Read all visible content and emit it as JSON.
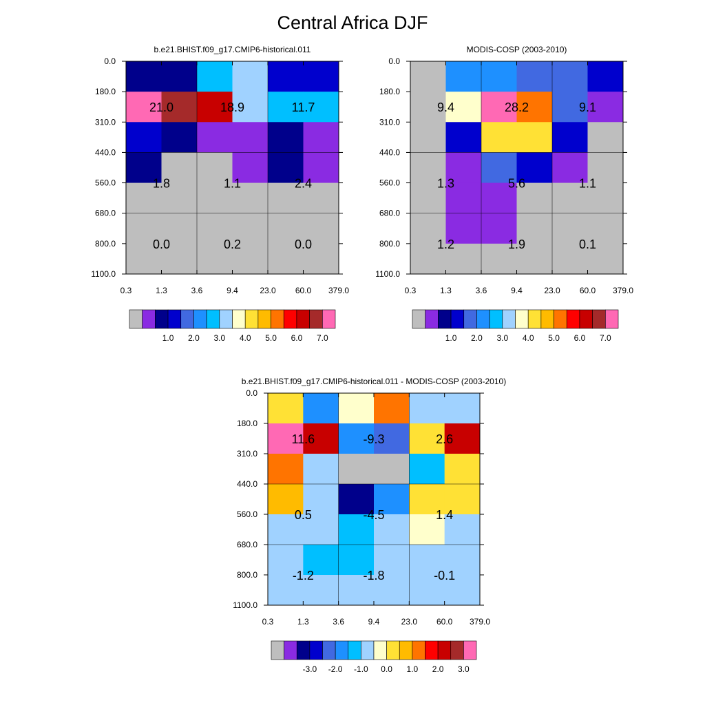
{
  "figure": {
    "title": "Central Africa DJF"
  },
  "colors": {
    "missing": "#bebebe",
    "abs_palette": [
      "#bebebe",
      "#8a2be2",
      "#00008b",
      "#0000cd",
      "#4169e1",
      "#1e90ff",
      "#00bfff",
      "#a0d2ff",
      "#ffffcc",
      "#ffe135",
      "#ffbb00",
      "#ff7400",
      "#ff0000",
      "#c80000",
      "#a52a2a",
      "#ff69b4"
    ],
    "diff_palette": [
      "#bebebe",
      "#8a2be2",
      "#00008b",
      "#0000cd",
      "#4169e1",
      "#1e90ff",
      "#00bfff",
      "#a0d2ff",
      "#ffffcc",
      "#ffe135",
      "#ffbb00",
      "#ff7400",
      "#ff0000",
      "#c80000",
      "#a52a2a",
      "#ff69b4"
    ]
  },
  "chart_data": [
    {
      "type": "heatmap",
      "title": "b.e21.BHIST.f09_g17.CMIP6-historical.011",
      "x_ticks": [
        "0.3",
        "1.3",
        "3.6",
        "9.4",
        "23.0",
        "60.0",
        "379.0"
      ],
      "y_ticks": [
        "0.0",
        "180.0",
        "310.0",
        "440.0",
        "560.0",
        "680.0",
        "800.0",
        "1100.0"
      ],
      "cell_colors": [
        [
          2,
          2,
          6,
          7,
          3,
          3
        ],
        [
          15,
          14,
          13,
          7,
          6,
          6
        ],
        [
          3,
          2,
          1,
          1,
          2,
          1
        ],
        [
          2,
          0,
          0,
          1,
          2,
          1
        ],
        [
          0,
          0,
          0,
          0,
          0,
          0
        ],
        [
          0,
          0,
          0,
          0,
          0,
          0
        ],
        [
          0,
          0,
          0,
          0,
          0,
          0
        ]
      ],
      "cell_labels": [
        {
          "row": 0,
          "col": 0,
          "text": "21.0"
        },
        {
          "row": 0,
          "col": 1,
          "text": "18.9"
        },
        {
          "row": 0,
          "col": 2,
          "text": "11.7"
        },
        {
          "row": 1,
          "col": 0,
          "text": "1.8"
        },
        {
          "row": 1,
          "col": 1,
          "text": "1.1"
        },
        {
          "row": 1,
          "col": 2,
          "text": "2.4"
        },
        {
          "row": 2,
          "col": 0,
          "text": "0.0"
        },
        {
          "row": 2,
          "col": 1,
          "text": "0.2"
        },
        {
          "row": 2,
          "col": 2,
          "text": "0.0"
        }
      ],
      "colorbar_labels": [
        "1.0",
        "2.0",
        "3.0",
        "4.0",
        "5.0",
        "6.0",
        "7.0"
      ]
    },
    {
      "type": "heatmap",
      "title": "MODIS-COSP (2003-2010)",
      "x_ticks": [
        "0.3",
        "1.3",
        "3.6",
        "9.4",
        "23.0",
        "60.0",
        "379.0"
      ],
      "y_ticks": [
        "0.0",
        "180.0",
        "310.0",
        "440.0",
        "560.0",
        "680.0",
        "800.0",
        "1100.0"
      ],
      "cell_colors": [
        [
          0,
          5,
          5,
          4,
          4,
          3
        ],
        [
          0,
          8,
          15,
          11,
          4,
          1
        ],
        [
          0,
          3,
          9,
          9,
          3,
          0
        ],
        [
          0,
          1,
          4,
          3,
          1,
          0
        ],
        [
          0,
          1,
          1,
          0,
          0,
          0
        ],
        [
          0,
          1,
          1,
          0,
          0,
          0
        ],
        [
          0,
          0,
          0,
          0,
          0,
          0
        ]
      ],
      "cell_labels": [
        {
          "row": 0,
          "col": 0,
          "text": "9.4"
        },
        {
          "row": 0,
          "col": 1,
          "text": "28.2"
        },
        {
          "row": 0,
          "col": 2,
          "text": "9.1"
        },
        {
          "row": 1,
          "col": 0,
          "text": "1.3"
        },
        {
          "row": 1,
          "col": 1,
          "text": "5.6"
        },
        {
          "row": 1,
          "col": 2,
          "text": "1.1"
        },
        {
          "row": 2,
          "col": 0,
          "text": "1.2"
        },
        {
          "row": 2,
          "col": 1,
          "text": "1.9"
        },
        {
          "row": 2,
          "col": 2,
          "text": "0.1"
        }
      ],
      "colorbar_labels": [
        "1.0",
        "2.0",
        "3.0",
        "4.0",
        "5.0",
        "6.0",
        "7.0"
      ]
    },
    {
      "type": "heatmap",
      "title": "b.e21.BHIST.f09_g17.CMIP6-historical.011 - MODIS-COSP (2003-2010)",
      "x_ticks": [
        "0.3",
        "1.3",
        "3.6",
        "9.4",
        "23.0",
        "60.0",
        "379.0"
      ],
      "y_ticks": [
        "0.0",
        "180.0",
        "310.0",
        "440.0",
        "560.0",
        "680.0",
        "800.0",
        "1100.0"
      ],
      "cell_colors": [
        [
          9,
          5,
          8,
          11,
          7,
          7
        ],
        [
          15,
          13,
          5,
          4,
          9,
          13
        ],
        [
          11,
          7,
          0,
          0,
          6,
          9
        ],
        [
          10,
          7,
          2,
          5,
          9,
          9
        ],
        [
          7,
          7,
          6,
          7,
          8,
          7
        ],
        [
          7,
          6,
          6,
          7,
          7,
          7
        ],
        [
          7,
          7,
          7,
          7,
          7,
          7
        ]
      ],
      "cell_labels": [
        {
          "row": 0,
          "col": 0,
          "text": "11.6"
        },
        {
          "row": 0,
          "col": 1,
          "text": "-9.3"
        },
        {
          "row": 0,
          "col": 2,
          "text": "2.6"
        },
        {
          "row": 1,
          "col": 0,
          "text": "0.5"
        },
        {
          "row": 1,
          "col": 1,
          "text": "-4.5"
        },
        {
          "row": 1,
          "col": 2,
          "text": "1.4"
        },
        {
          "row": 2,
          "col": 0,
          "text": "-1.2"
        },
        {
          "row": 2,
          "col": 1,
          "text": "-1.8"
        },
        {
          "row": 2,
          "col": 2,
          "text": "-0.1"
        }
      ],
      "colorbar_labels": [
        "-3.0",
        "-2.0",
        "-1.0",
        "0.0",
        "1.0",
        "2.0",
        "3.0"
      ]
    }
  ]
}
